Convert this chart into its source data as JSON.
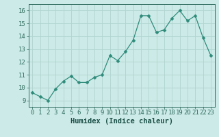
{
  "x": [
    0,
    1,
    2,
    3,
    4,
    5,
    6,
    7,
    8,
    9,
    10,
    11,
    12,
    13,
    14,
    15,
    16,
    17,
    18,
    19,
    20,
    21,
    22,
    23
  ],
  "y": [
    9.6,
    9.3,
    9.0,
    9.9,
    10.5,
    10.9,
    10.4,
    10.4,
    10.8,
    11.0,
    12.5,
    12.1,
    12.8,
    13.7,
    15.6,
    15.6,
    14.3,
    14.5,
    15.4,
    16.0,
    15.2,
    15.6,
    13.9,
    12.5
  ],
  "line_color": "#2e8b7a",
  "marker": "D",
  "marker_size": 2.5,
  "bg_color": "#cceae7",
  "grid_color": "#b0d4d0",
  "xlabel": "Humidex (Indice chaleur)",
  "xlim": [
    -0.5,
    23.5
  ],
  "ylim": [
    8.5,
    16.5
  ],
  "yticks": [
    9,
    10,
    11,
    12,
    13,
    14,
    15,
    16
  ],
  "xticks": [
    0,
    1,
    2,
    3,
    4,
    5,
    6,
    7,
    8,
    9,
    10,
    11,
    12,
    13,
    14,
    15,
    16,
    17,
    18,
    19,
    20,
    21,
    22,
    23
  ],
  "tick_color": "#2e6b5e",
  "label_color": "#1a4f47",
  "xlabel_fontsize": 7.5,
  "tick_fontsize": 6.5
}
